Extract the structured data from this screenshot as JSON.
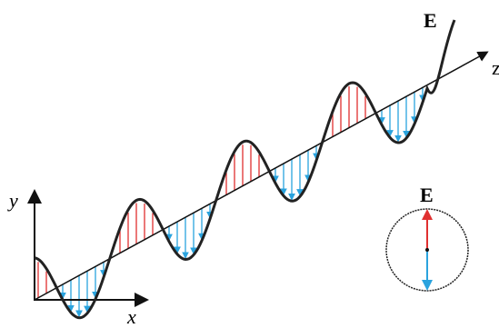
{
  "wave_label": "E",
  "axes": {
    "z": "z",
    "y": "y",
    "x": "x"
  },
  "inset": {
    "label": "E"
  }
}
